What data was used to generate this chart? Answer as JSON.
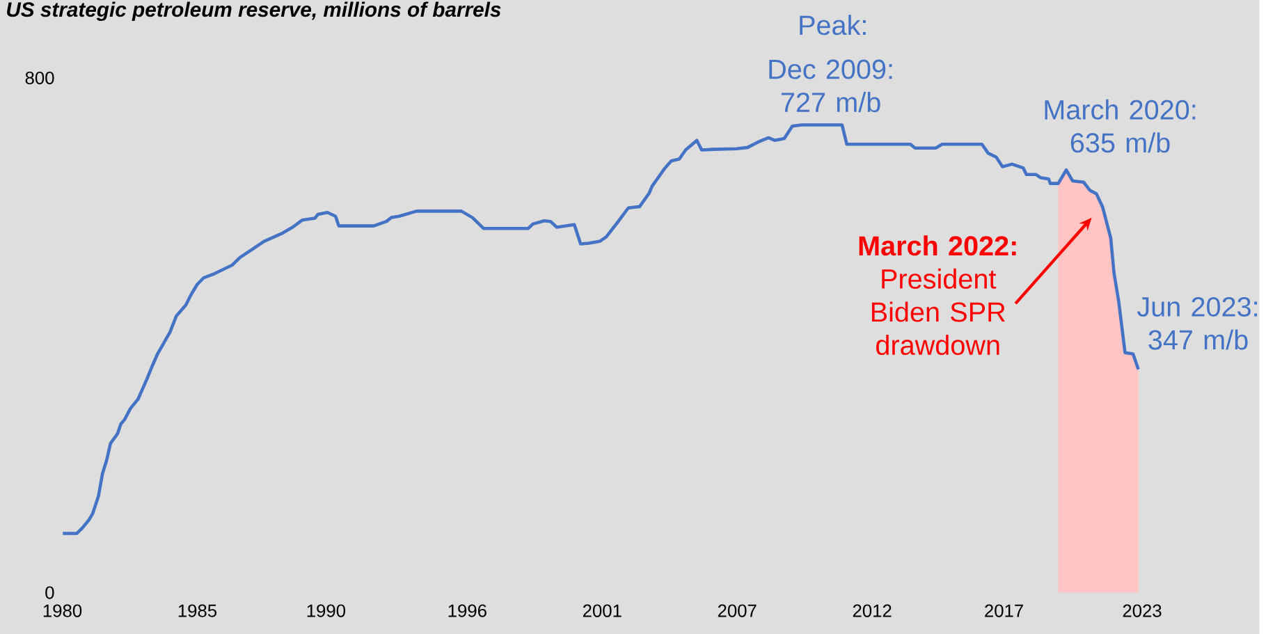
{
  "chart_data": {
    "type": "line",
    "title": "US strategic petroleum reserve, millions of barrels",
    "series": [
      {
        "type": "area",
        "color": "#ffc5c5",
        "x": [
          2019.66,
          2019.98,
          2020.23,
          2020.67,
          2020.93,
          2021.18,
          2021.43,
          2021.75,
          2021.88,
          2022.07,
          2022.32,
          2022.64,
          2022.85
        ],
        "values": [
          636,
          657,
          640,
          638,
          625,
          620,
          599,
          551,
          497,
          452,
          373,
          371,
          347
        ]
      },
      {
        "color": "#4472c4",
        "x": [
          1980.02,
          1980.58,
          1980.81,
          1981.06,
          1981.21,
          1981.44,
          1981.6,
          1981.76,
          1981.92,
          1982.2,
          1982.33,
          1982.48,
          1982.71,
          1983.02,
          1983.21,
          1983.38,
          1983.59,
          1983.78,
          1984.04,
          1984.29,
          1984.54,
          1984.92,
          1985.11,
          1985.37,
          1985.62,
          1986.07,
          1986.76,
          1987.08,
          1987.58,
          1988.03,
          1988.73,
          1989.17,
          1989.55,
          1990.06,
          1990.18,
          1990.56,
          1990.88,
          1991.01,
          1992.4,
          1992.91,
          1993.1,
          1993.41,
          1994.11,
          1995.89,
          1996.33,
          1996.78,
          1998.55,
          1998.74,
          1999.19,
          1999.44,
          1999.69,
          2000.39,
          2000.64,
          2000.96,
          2001.4,
          2001.66,
          2002.16,
          2002.54,
          2002.99,
          2003.37,
          2003.49,
          2004.0,
          2004.25,
          2004.57,
          2004.82,
          2005.27,
          2005.46,
          2005.9,
          2006.85,
          2007.29,
          2007.74,
          2008.12,
          2008.37,
          2008.75,
          2009.07,
          2009.45,
          2011.05,
          2011.24,
          2013.77,
          2013.96,
          2014.78,
          2015.04,
          2016.62,
          2016.87,
          2017.19,
          2017.44,
          2017.82,
          2018.27,
          2018.39,
          2018.77,
          2018.96,
          2019.28,
          2019.34,
          2019.66,
          2019.98,
          2020.23,
          2020.67,
          2020.93,
          2021.18,
          2021.43,
          2021.75,
          2021.88,
          2022.07,
          2022.32,
          2022.64,
          2022.85
        ],
        "values": [
          92,
          92,
          101,
          113,
          123,
          150,
          185,
          205,
          232,
          247,
          262,
          269,
          286,
          301,
          318,
          333,
          353,
          370,
          388,
          405,
          430,
          447,
          462,
          479,
          489,
          496,
          509,
          521,
          534,
          546,
          558,
          568,
          579,
          582,
          588,
          591,
          585,
          570,
          570,
          577,
          583,
          585,
          593,
          593,
          583,
          566,
          566,
          573,
          578,
          577,
          568,
          572,
          542,
          543,
          546,
          553,
          578,
          598,
          600,
          621,
          632,
          660,
          671,
          674,
          688,
          703,
          688,
          689,
          690,
          692,
          701,
          707,
          703,
          706,
          725,
          727,
          727,
          697,
          697,
          691,
          691,
          697,
          697,
          683,
          677,
          662,
          666,
          660,
          650,
          650,
          645,
          643,
          636,
          636,
          657,
          640,
          638,
          625,
          620,
          599,
          551,
          497,
          452,
          373,
          371,
          347
        ]
      }
    ],
    "xlim": [
      1980,
      2023
    ],
    "ylim": [
      0,
      800
    ],
    "xticks": [
      1980,
      {
        "value": 1985.375,
        "label": "1985"
      },
      {
        "value": 1990.5,
        "label": "1990"
      },
      {
        "value": 1996.125,
        "label": "1996"
      },
      {
        "value": 2001.5,
        "label": "2001"
      },
      {
        "value": 2006.875,
        "label": "2007"
      },
      {
        "value": 2012.25,
        "label": "2012"
      },
      {
        "value": 2017.5,
        "label": "2017"
      },
      2023
    ],
    "yticks": [
      0,
      800
    ],
    "line_style": "solid",
    "annotations": [
      "Peak:",
      {
        "text": "Dec 2009: 727 m/b",
        "x": 2010.6,
        "y": 727
      },
      "March 2020: 635 m/b",
      "**March 2022:** President Biden SPR drawdown",
      {
        "text": "Jun 2023: 347 m/b",
        "x": 2022.85,
        "y": 347
      }
    ]
  }
}
